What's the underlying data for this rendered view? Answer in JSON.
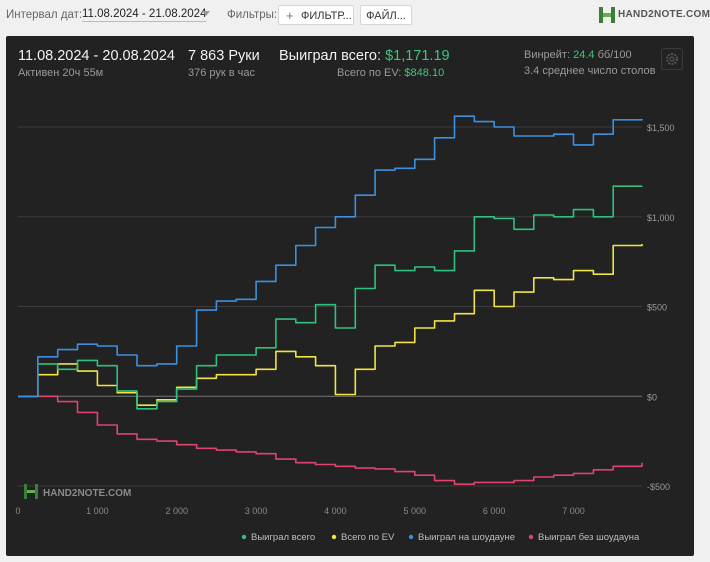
{
  "toolbar": {
    "date_interval_label": "Интервал дат:",
    "date_interval_value": "11.08.2024 - 21.08.2024",
    "filters_label": "Фильтры:",
    "filters_button": "ФИЛЬТР...",
    "file_button": "ФАЙЛ...",
    "brand": "HAND2NOTE.COM"
  },
  "stats": {
    "date_range": "11.08.2024 - 20.08.2024",
    "active_time": "Активен 20ч 55м",
    "hands": "7 863 Руки",
    "hands_per_hour": "376 рук в час",
    "won_total_label": "Выиграл всего:",
    "won_total_value": "$1,171.19",
    "ev_total_label": "Всего по EV:",
    "ev_total_value": "$848.10",
    "winrate_label": "Винрейт:",
    "winrate_value": "24.4",
    "winrate_unit": "бб/100",
    "avg_tables": "3.4 среднее число столов"
  },
  "watermark": "HAND2NOTE.COM",
  "colors": {
    "won_total": "#2ec27e",
    "ev": "#f1e443",
    "showdown": "#3d8fe0",
    "non_showdown": "#e0436e"
  },
  "chart_data": {
    "type": "line",
    "title": "",
    "xlabel": "",
    "ylabel": "",
    "xlim": [
      0,
      7863
    ],
    "ylim": [
      -500,
      1500
    ],
    "x_ticks": [
      0,
      1000,
      2000,
      3000,
      4000,
      5000,
      6000,
      7000
    ],
    "x_tick_labels": [
      "0",
      "1 000",
      "2 000",
      "3 000",
      "4 000",
      "5 000",
      "6 000",
      "7 000"
    ],
    "y_ticks": [
      1500,
      1000,
      500,
      0,
      -500
    ],
    "y_tick_labels": [
      "$1,500",
      "$1,000",
      "$500",
      "$0",
      "-$500"
    ],
    "grid": true,
    "legend_position": "bottom-right",
    "x": [
      0,
      250,
      500,
      750,
      1000,
      1250,
      1500,
      1750,
      2000,
      2250,
      2500,
      2750,
      3000,
      3250,
      3500,
      3750,
      4000,
      4250,
      4500,
      4750,
      5000,
      5250,
      5500,
      5750,
      6000,
      6250,
      6500,
      6750,
      7000,
      7250,
      7500,
      7863
    ],
    "series": [
      {
        "name": "Выиграл всего",
        "values": [
          0,
          180,
          150,
          200,
          170,
          30,
          -70,
          -30,
          40,
          170,
          230,
          230,
          270,
          430,
          410,
          510,
          380,
          600,
          730,
          700,
          720,
          700,
          810,
          1000,
          990,
          930,
          1010,
          1000,
          1040,
          1000,
          1170,
          1171
        ]
      },
      {
        "name": "Всего по EV",
        "values": [
          0,
          120,
          180,
          140,
          60,
          20,
          -50,
          -20,
          50,
          100,
          120,
          120,
          150,
          250,
          220,
          170,
          10,
          150,
          280,
          300,
          380,
          420,
          460,
          590,
          500,
          580,
          660,
          650,
          700,
          680,
          840,
          848
        ]
      },
      {
        "name": "Выиграл на шоудауне",
        "values": [
          0,
          220,
          260,
          290,
          280,
          230,
          170,
          180,
          280,
          480,
          530,
          540,
          640,
          730,
          840,
          940,
          1000,
          1120,
          1260,
          1270,
          1320,
          1440,
          1560,
          1530,
          1500,
          1450,
          1450,
          1460,
          1400,
          1460,
          1540,
          1545
        ]
      },
      {
        "name": "Выиграл без шоудауна",
        "values": [
          0,
          0,
          -30,
          -90,
          -160,
          -210,
          -240,
          -250,
          -270,
          -290,
          -300,
          -310,
          -320,
          -350,
          -370,
          -380,
          -390,
          -400,
          -405,
          -420,
          -440,
          -470,
          -490,
          -480,
          -480,
          -470,
          -450,
          -440,
          -430,
          -410,
          -390,
          -370
        ]
      }
    ]
  }
}
